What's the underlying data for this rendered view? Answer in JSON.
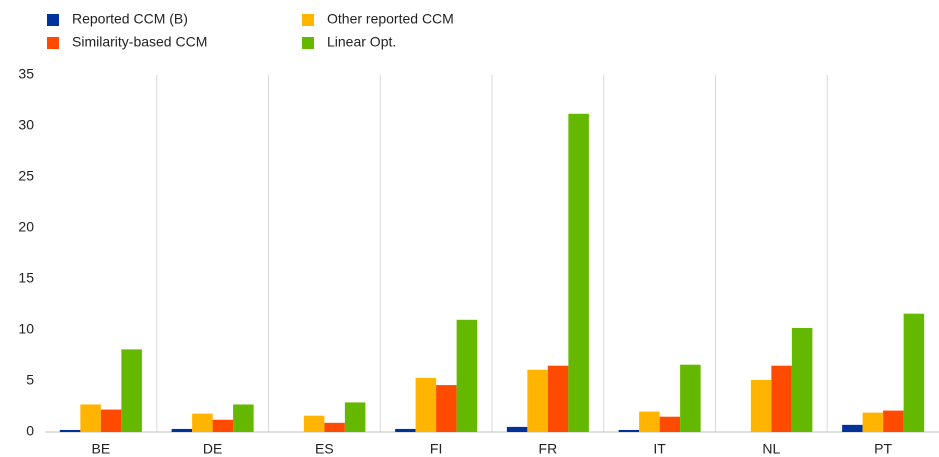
{
  "chart_data": {
    "type": "bar",
    "categories": [
      "BE",
      "DE",
      "ES",
      "FI",
      "FR",
      "IT",
      "NL",
      "PT"
    ],
    "series": [
      {
        "name": "Reported CCM (B)",
        "color": "#003299",
        "values": [
          0.2,
          0.3,
          0,
          0.3,
          0.5,
          0.2,
          0,
          0.7
        ]
      },
      {
        "name": "Other reported CCM",
        "color": "#ffb400",
        "values": [
          2.7,
          1.8,
          1.6,
          5.3,
          6.1,
          2.0,
          5.1,
          1.9
        ]
      },
      {
        "name": "Similarity-based CCM",
        "color": "#ff4b00",
        "values": [
          2.2,
          1.2,
          0.9,
          4.6,
          6.5,
          1.5,
          6.5,
          2.1
        ]
      },
      {
        "name": "Linear Opt.",
        "color": "#65b800",
        "values": [
          8.1,
          2.7,
          2.9,
          11.0,
          31.2,
          6.6,
          10.2,
          11.6
        ]
      }
    ],
    "ylim": [
      0,
      35
    ],
    "yticks": [
      0,
      5,
      10,
      15,
      20,
      25,
      30,
      35
    ]
  }
}
